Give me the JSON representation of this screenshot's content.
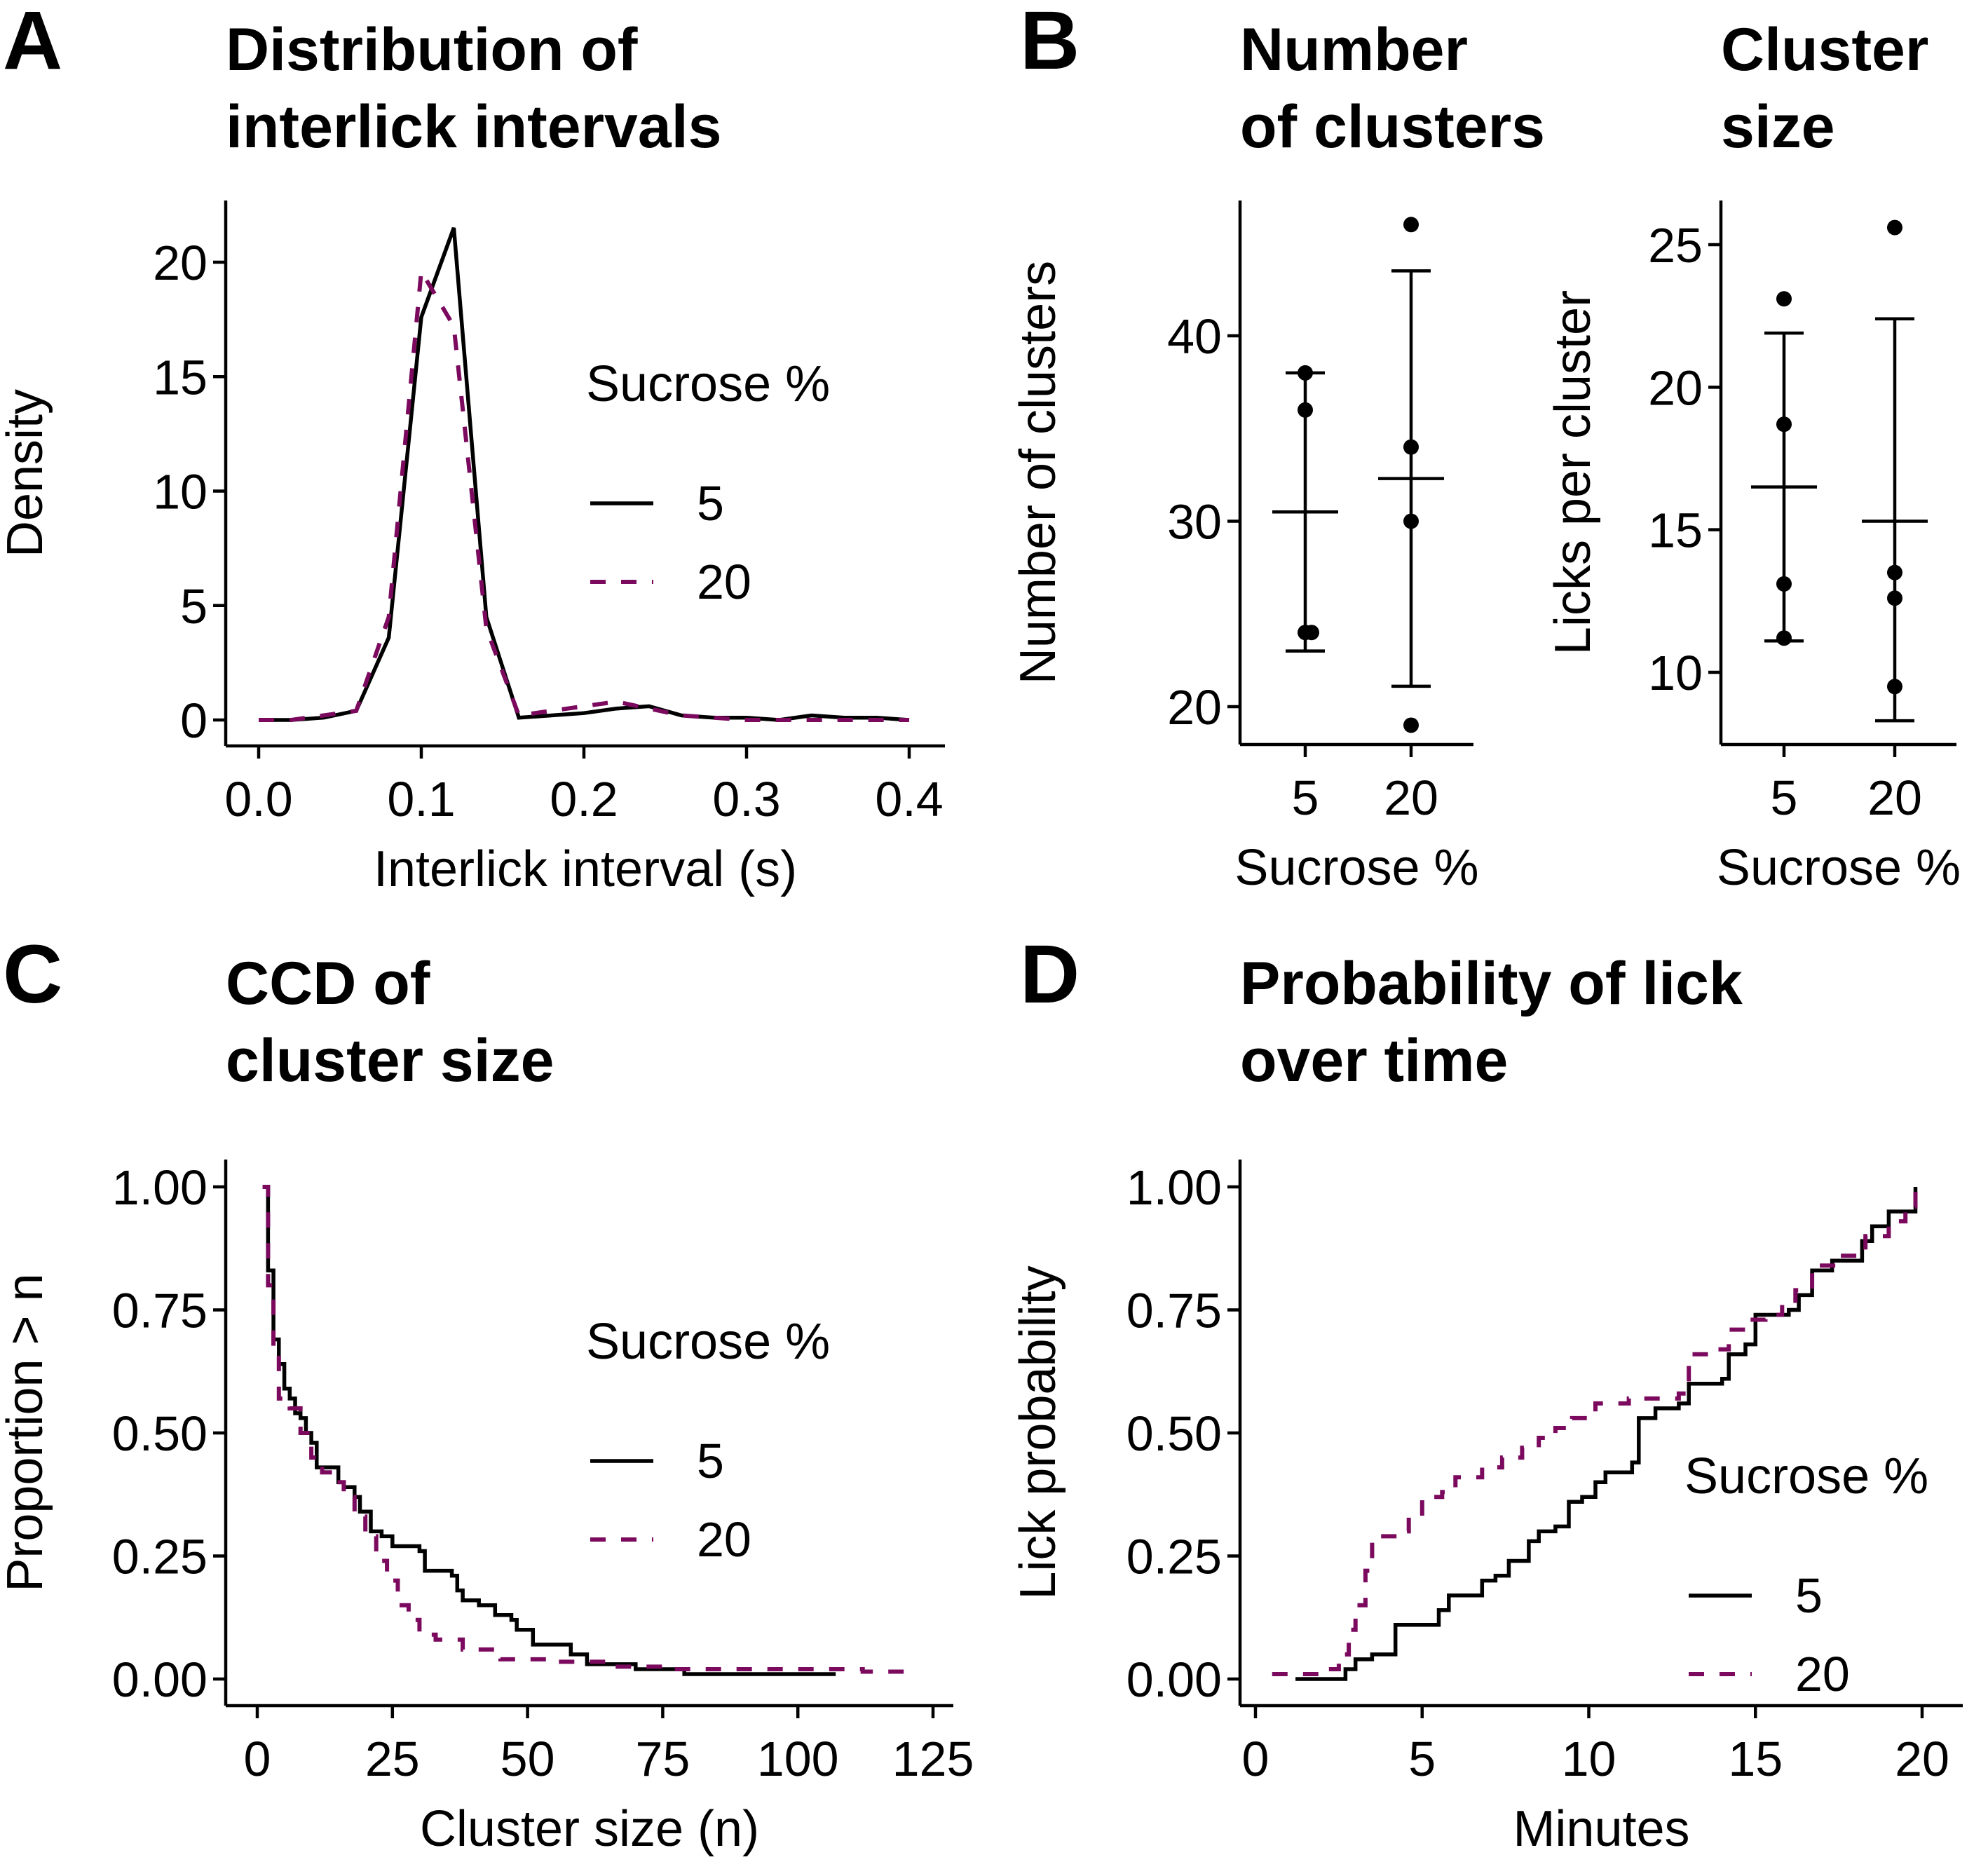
{
  "figure": {
    "colors": {
      "sucrose_5": "#000000",
      "sucrose_20": "#7B0A5E"
    }
  },
  "chart_data": [
    {
      "id": "A",
      "type": "line",
      "panel_letter": "A",
      "title_lines": [
        "Distribution of",
        "interlick intervals"
      ],
      "xlabel": "Interlick interval (s)",
      "ylabel": "Density",
      "xlim": [
        0,
        0.4
      ],
      "ylim": [
        0,
        22
      ],
      "xticks": [
        0.0,
        0.1,
        0.2,
        0.3,
        0.4
      ],
      "xtick_labels": [
        "0.0",
        "0.1",
        "0.2",
        "0.3",
        "0.4"
      ],
      "yticks": [
        0,
        5,
        10,
        15,
        20
      ],
      "ytick_labels": [
        "0",
        "5",
        "10",
        "15",
        "20"
      ],
      "legend": {
        "title": "Sucrose %",
        "entries": [
          "5",
          "20"
        ],
        "placement": "right"
      },
      "x": [
        0.0,
        0.02,
        0.04,
        0.06,
        0.08,
        0.1,
        0.12,
        0.14,
        0.16,
        0.18,
        0.2,
        0.22,
        0.24,
        0.26,
        0.28,
        0.3,
        0.32,
        0.34,
        0.36,
        0.38,
        0.4
      ],
      "series": [
        {
          "name": "5",
          "style": "solid",
          "values": [
            0.0,
            0.0,
            0.1,
            0.4,
            3.6,
            17.6,
            21.5,
            4.5,
            0.1,
            0.2,
            0.3,
            0.5,
            0.6,
            0.2,
            0.1,
            0.1,
            0.0,
            0.2,
            0.1,
            0.1,
            0.0
          ]
        },
        {
          "name": "20",
          "style": "dashed",
          "values": [
            0.0,
            0.0,
            0.2,
            0.4,
            4.5,
            19.6,
            17.2,
            4.0,
            0.2,
            0.4,
            0.6,
            0.8,
            0.5,
            0.2,
            0.1,
            0.0,
            0.0,
            0.0,
            0.0,
            0.0,
            0.0
          ]
        }
      ]
    },
    {
      "id": "B1",
      "type": "scatter",
      "panel_letter": "B",
      "title_lines": [
        "Number",
        "of clusters"
      ],
      "xlabel": "Sucrose %",
      "ylabel": "Number of clusters",
      "categories": [
        "5",
        "20"
      ],
      "ylim": [
        18,
        47
      ],
      "yticks": [
        20,
        30,
        40
      ],
      "ytick_labels": [
        "20",
        "30",
        "40"
      ],
      "groups": [
        {
          "category": "5",
          "points": [
            38.0,
            36.0,
            24.0,
            24.0
          ],
          "mean": 30.5,
          "err_low": 23.0,
          "err_high": 38.0
        },
        {
          "category": "20",
          "points": [
            46.0,
            34.0,
            30.0,
            19.0
          ],
          "mean": 32.3,
          "err_low": 21.1,
          "err_high": 43.5
        }
      ]
    },
    {
      "id": "B2",
      "type": "scatter",
      "panel_letter": "",
      "title_lines": [
        "Cluster",
        "size"
      ],
      "xlabel": "Sucrose %",
      "ylabel": "Licks per cluster",
      "categories": [
        "5",
        "20"
      ],
      "ylim": [
        7.5,
        26.5
      ],
      "yticks": [
        10,
        15,
        20,
        25
      ],
      "ytick_labels": [
        "10",
        "15",
        "20",
        "25"
      ],
      "groups": [
        {
          "category": "5",
          "points": [
            23.1,
            18.7,
            13.1,
            11.2
          ],
          "mean": 16.5,
          "err_low": 11.1,
          "err_high": 21.9
        },
        {
          "category": "20",
          "points": [
            25.6,
            13.5,
            12.6,
            9.5
          ],
          "mean": 15.3,
          "err_low": 8.3,
          "err_high": 22.4
        }
      ]
    },
    {
      "id": "C",
      "type": "line",
      "step": true,
      "panel_letter": "C",
      "title_lines": [
        "CCD of",
        "cluster size"
      ],
      "xlabel": "Cluster size (n)",
      "ylabel": "Proportion > n",
      "xlim": [
        -5,
        128
      ],
      "ylim": [
        -0.05,
        1.05
      ],
      "xticks": [
        0,
        25,
        50,
        75,
        100,
        125
      ],
      "xtick_labels": [
        "0",
        "25",
        "50",
        "75",
        "100",
        "125"
      ],
      "yticks": [
        0,
        0.25,
        0.5,
        0.75,
        1.0
      ],
      "ytick_labels": [
        "0.00",
        "0.25",
        "0.50",
        "0.75",
        "1.00"
      ],
      "legend": {
        "title": "Sucrose %",
        "entries": [
          "5",
          "20"
        ],
        "placement": "right"
      },
      "series": [
        {
          "name": "5",
          "style": "solid",
          "x": [
            1,
            2,
            3,
            4,
            5,
            6,
            7,
            8,
            9,
            10,
            11,
            15,
            16,
            18,
            19,
            21,
            23,
            25,
            30,
            31,
            36,
            37,
            38,
            41,
            44,
            47,
            48,
            51,
            58,
            61,
            70,
            79,
            107
          ],
          "y": [
            1.0,
            0.83,
            0.69,
            0.64,
            0.59,
            0.57,
            0.54,
            0.53,
            0.5,
            0.48,
            0.43,
            0.4,
            0.39,
            0.37,
            0.34,
            0.3,
            0.29,
            0.27,
            0.26,
            0.22,
            0.21,
            0.18,
            0.16,
            0.15,
            0.13,
            0.12,
            0.1,
            0.07,
            0.05,
            0.03,
            0.02,
            0.01,
            0.01
          ]
        },
        {
          "name": "20",
          "style": "dashed",
          "x": [
            1,
            2,
            3,
            4,
            6,
            8,
            10,
            12,
            14,
            16,
            18,
            20,
            22,
            24,
            26,
            28,
            30,
            33,
            38,
            45,
            55,
            65,
            75,
            85,
            112,
            120
          ],
          "y": [
            1.0,
            0.8,
            0.66,
            0.57,
            0.55,
            0.5,
            0.45,
            0.42,
            0.4,
            0.37,
            0.33,
            0.29,
            0.24,
            0.2,
            0.15,
            0.12,
            0.09,
            0.08,
            0.06,
            0.04,
            0.035,
            0.025,
            0.02,
            0.02,
            0.015,
            0.01
          ]
        }
      ]
    },
    {
      "id": "D",
      "type": "line",
      "step": true,
      "panel_letter": "D",
      "title_lines": [
        "Probability of lick",
        "over time"
      ],
      "xlabel": "Minutes",
      "ylabel": "Lick probability",
      "xlim": [
        -0.5,
        21
      ],
      "ylim": [
        -0.05,
        1.05
      ],
      "xticks": [
        0,
        5,
        10,
        15,
        20
      ],
      "xtick_labels": [
        "0",
        "5",
        "10",
        "15",
        "20"
      ],
      "yticks": [
        0,
        0.25,
        0.5,
        0.75,
        1.0
      ],
      "ytick_labels": [
        "0.00",
        "0.25",
        "0.50",
        "0.75",
        "1.00"
      ],
      "legend": {
        "title": "Sucrose %",
        "entries": [
          "5",
          "20"
        ],
        "placement": "bottom-right"
      },
      "series": [
        {
          "name": "5",
          "style": "solid",
          "x": [
            1.2,
            2.7,
            3.0,
            3.5,
            4.0,
            4.2,
            5.0,
            5.5,
            5.8,
            6.8,
            7.2,
            7.6,
            8.2,
            8.5,
            9.0,
            9.4,
            9.8,
            10.2,
            10.5,
            11.0,
            11.3,
            11.5,
            12.0,
            12.7,
            13.0,
            14.0,
            14.2,
            14.7,
            15.0,
            16.0,
            16.3,
            16.7,
            17.3,
            18.2,
            18.5,
            19.0,
            19.5,
            19.8
          ],
          "y": [
            0.0,
            0.02,
            0.04,
            0.05,
            0.05,
            0.11,
            0.11,
            0.14,
            0.17,
            0.2,
            0.21,
            0.24,
            0.28,
            0.3,
            0.31,
            0.36,
            0.37,
            0.4,
            0.42,
            0.42,
            0.44,
            0.53,
            0.55,
            0.56,
            0.6,
            0.61,
            0.66,
            0.68,
            0.74,
            0.75,
            0.78,
            0.83,
            0.85,
            0.89,
            0.92,
            0.95,
            0.95,
            1.0
          ]
        },
        {
          "name": "20",
          "style": "dashed",
          "x": [
            0.5,
            1.5,
            2.2,
            2.5,
            2.8,
            3.0,
            3.3,
            3.5,
            4.3,
            4.6,
            5.0,
            5.6,
            6.0,
            6.8,
            7.4,
            8.0,
            8.5,
            9.0,
            9.5,
            10.2,
            11.2,
            12.0,
            12.7,
            13.0,
            13.6,
            14.2,
            14.8,
            15.3,
            15.8,
            16.2,
            16.7,
            17.5,
            18.3,
            19.0,
            19.5,
            19.8
          ],
          "y": [
            0.01,
            0.01,
            0.02,
            0.05,
            0.1,
            0.15,
            0.22,
            0.29,
            0.3,
            0.33,
            0.37,
            0.38,
            0.41,
            0.43,
            0.45,
            0.47,
            0.49,
            0.51,
            0.53,
            0.56,
            0.57,
            0.57,
            0.58,
            0.66,
            0.67,
            0.71,
            0.73,
            0.74,
            0.76,
            0.79,
            0.84,
            0.86,
            0.9,
            0.93,
            0.96,
            0.99
          ]
        }
      ]
    }
  ]
}
